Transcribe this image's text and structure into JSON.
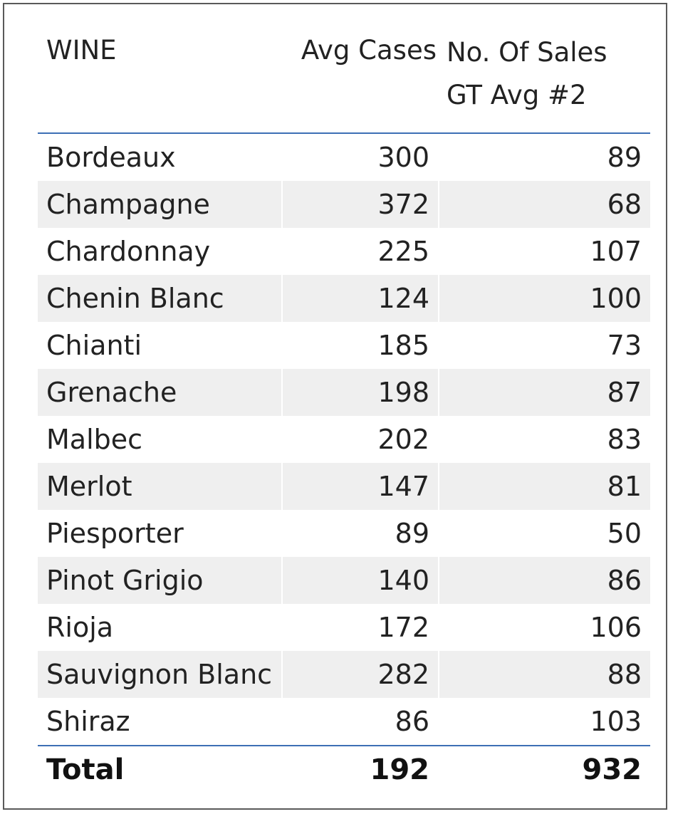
{
  "table": {
    "columns": [
      "WINE",
      "Avg Cases",
      "No. Of Sales GT Avg #2"
    ],
    "header": {
      "wine": "WINE",
      "avg_cases": "Avg Cases",
      "sales_line1": "No. Of Sales",
      "sales_line2": "GT Avg #2"
    },
    "rows": [
      {
        "wine": "Bordeaux",
        "avg_cases": "300",
        "sales": "89"
      },
      {
        "wine": "Champagne",
        "avg_cases": "372",
        "sales": "68"
      },
      {
        "wine": "Chardonnay",
        "avg_cases": "225",
        "sales": "107"
      },
      {
        "wine": "Chenin Blanc",
        "avg_cases": "124",
        "sales": "100"
      },
      {
        "wine": "Chianti",
        "avg_cases": "185",
        "sales": "73"
      },
      {
        "wine": "Grenache",
        "avg_cases": "198",
        "sales": "87"
      },
      {
        "wine": "Malbec",
        "avg_cases": "202",
        "sales": "83"
      },
      {
        "wine": "Merlot",
        "avg_cases": "147",
        "sales": "81"
      },
      {
        "wine": "Piesporter",
        "avg_cases": "89",
        "sales": "50"
      },
      {
        "wine": "Pinot Grigio",
        "avg_cases": "140",
        "sales": "86"
      },
      {
        "wine": "Rioja",
        "avg_cases": "172",
        "sales": "106"
      },
      {
        "wine": "Sauvignon Blanc",
        "avg_cases": "282",
        "sales": "88"
      },
      {
        "wine": "Shiraz",
        "avg_cases": "86",
        "sales": "103"
      }
    ],
    "total": {
      "label": "Total",
      "avg_cases": "192",
      "sales": "932"
    }
  },
  "colors": {
    "header_rule": "#3d6fb5",
    "alt_row": "#efefef",
    "frame": "#5a5a5a"
  }
}
